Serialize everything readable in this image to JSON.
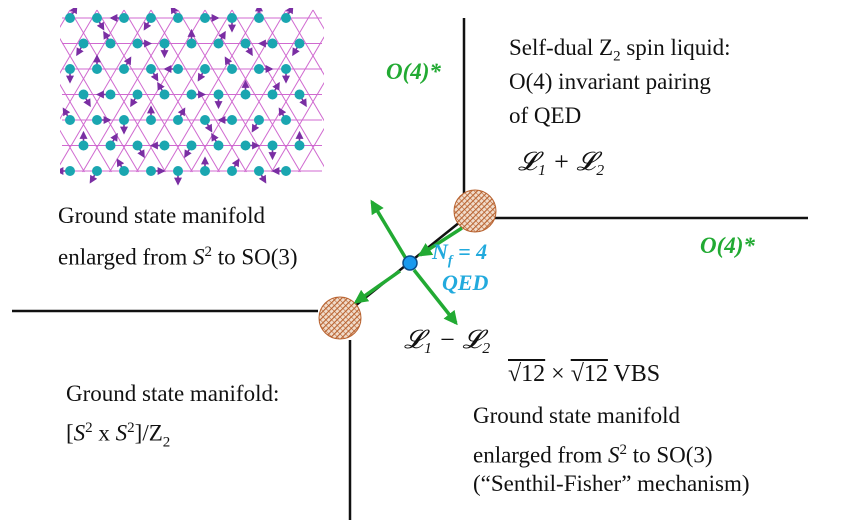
{
  "colors": {
    "lines": "#111111",
    "arrows": "#22aa33",
    "o4_label": "#22aa33",
    "qed_label": "#22aadd",
    "critical_point": "#1a99ee",
    "hatched_disk": "#b8622f",
    "lattice_lines": "#d06ad0",
    "lattice_sites": "#1aa6b0",
    "lattice_spins": "#7a2ea3"
  },
  "top_right": {
    "line1_prefix": "Self-dual Z",
    "line1_sub": "2",
    "line1_suffix": " spin liquid:",
    "line2": "O(4) invariant pairing",
    "line3": "of QED",
    "formula": "𝓛₁ + 𝓛₂"
  },
  "o4_labels": {
    "upper": "O(4)*",
    "right": "O(4)*"
  },
  "top_left": {
    "line1": "Ground state manifold",
    "line2_prefix": "enlarged from ",
    "line2_S": "S",
    "line2_sup": "2",
    "line2_suffix": " to SO(3)"
  },
  "center": {
    "nf_N": "N",
    "nf_sub": "f",
    "nf_eq": " = 4",
    "qed": "QED",
    "formula": "𝓛₁ − 𝓛₂"
  },
  "bottom_left": {
    "line1": "Ground state manifold:",
    "line2_a": "[",
    "line2_S1": "S",
    "line2_sup1": "2",
    "line2_x": " x ",
    "line2_S2": "S",
    "line2_sup2": "2",
    "line2_b": "]/Z",
    "line2_sub": "2"
  },
  "bottom_right": {
    "vbs_sqrt1": "√12",
    "vbs_times": " × ",
    "vbs_sqrt2": "√12",
    "vbs_label": " VBS",
    "line1": "Ground state manifold",
    "line2_prefix": "enlarged from ",
    "line2_S": "S",
    "line2_sup": "2",
    "line2_suffix": " to SO(3)",
    "line3": "(“Senthil-Fisher” mechanism)"
  }
}
